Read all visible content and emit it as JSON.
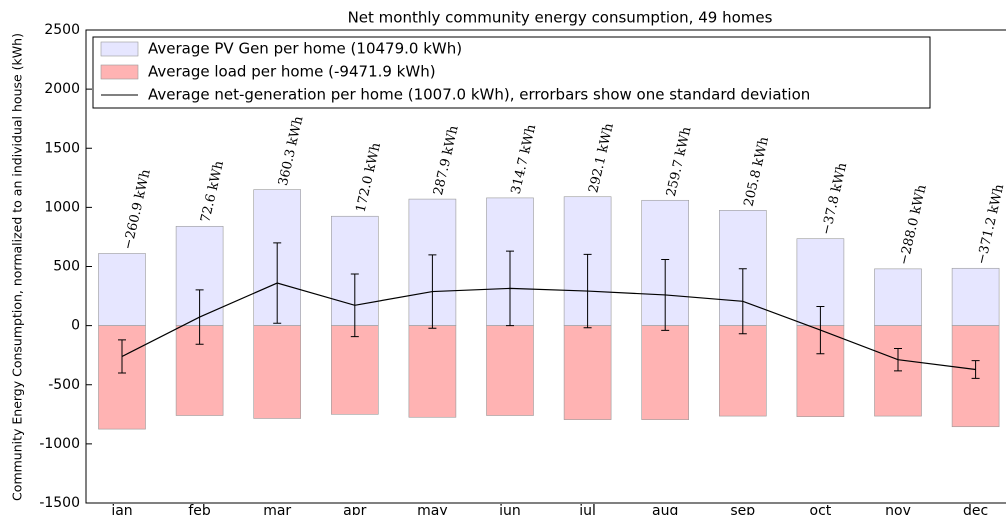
{
  "chart_data": {
    "type": "bar",
    "title": "Net monthly community energy consumption, 49 homes",
    "ylabel": "Community Energy Consumption, normalized to an individual house (kWh)",
    "categories": [
      "jan",
      "feb",
      "mar",
      "apr",
      "may",
      "jun",
      "jul",
      "aug",
      "sep",
      "oct",
      "nov",
      "dec"
    ],
    "series": [
      {
        "name": "Average PV Gen per home (10479.0 kWh)",
        "color": "#e6e6ff",
        "values": [
          610,
          840,
          1150,
          925,
          1070,
          1080,
          1090,
          1060,
          975,
          735,
          480,
          485
        ]
      },
      {
        "name": "Average load per home (-9471.9 kWh)",
        "color": "#ffb3b3",
        "values": [
          -875,
          -760,
          -785,
          -750,
          -775,
          -760,
          -795,
          -795,
          -765,
          -770,
          -765,
          -855
        ]
      },
      {
        "name": "Average net-generation per home (1007.0 kWh), errorbars show one standard deviation",
        "color": "#000000",
        "values": [
          -260.9,
          72.6,
          360.3,
          172.0,
          287.9,
          314.7,
          292.1,
          259.7,
          205.8,
          -37.8,
          -288.0,
          -371.2
        ],
        "value_labels": [
          "−260.9 kWh",
          "72.6 kWh",
          "360.3 kWh",
          "172.0 kWh",
          "287.9 kWh",
          "314.7 kWh",
          "292.1 kWh",
          "259.7 kWh",
          "205.8 kWh",
          "−37.8 kWh",
          "−288.0 kWh",
          "−371.2 kWh"
        ],
        "errors": [
          140,
          230,
          340,
          265,
          310,
          315,
          310,
          300,
          275,
          200,
          95,
          75
        ]
      }
    ],
    "ylim": [
      -1500,
      2500
    ],
    "yticks": [
      -1500,
      -1000,
      -500,
      0,
      500,
      1000,
      1500,
      2000,
      2500
    ]
  }
}
